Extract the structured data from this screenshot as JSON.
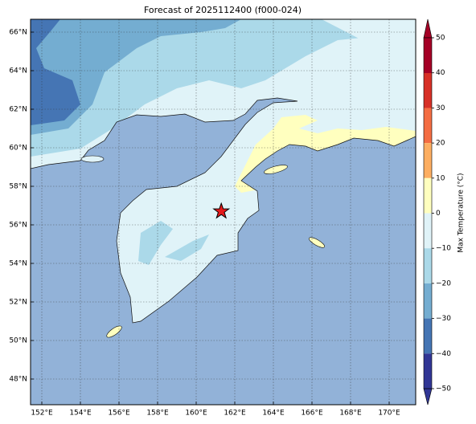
{
  "title": "Forecast of 2025112400 (f000-024)",
  "latitude_labels": [
    {
      "value": 66,
      "label": "66°N"
    },
    {
      "value": 64,
      "label": "64°N"
    },
    {
      "value": 62,
      "label": "62°N"
    },
    {
      "value": 60,
      "label": "60°N"
    },
    {
      "value": 58,
      "label": "58°N"
    },
    {
      "value": 56,
      "label": "56°N"
    },
    {
      "value": 54,
      "label": "54°N"
    },
    {
      "value": 52,
      "label": "52°N"
    },
    {
      "value": 50,
      "label": "50°N"
    },
    {
      "value": 48,
      "label": "48°N"
    }
  ],
  "longitude_labels": [
    {
      "value": 152,
      "label": "152°E"
    },
    {
      "value": 154,
      "label": "154°E"
    },
    {
      "value": 156,
      "label": "156°E"
    },
    {
      "value": 158,
      "label": "158°E"
    },
    {
      "value": 160,
      "label": "160°E"
    },
    {
      "value": 162,
      "label": "162°E"
    },
    {
      "value": 164,
      "label": "164°E"
    },
    {
      "value": 166,
      "label": "166°E"
    },
    {
      "value": 168,
      "label": "168°E"
    },
    {
      "value": 170,
      "label": "170°E"
    }
  ],
  "colorbar": {
    "label": "Max Temperature (°C)",
    "ticks": [
      {
        "value": 50,
        "label": "50"
      },
      {
        "value": 40,
        "label": "40"
      },
      {
        "value": 30,
        "label": "30"
      },
      {
        "value": 20,
        "label": "20"
      },
      {
        "value": 10,
        "label": "10"
      },
      {
        "value": 0,
        "label": "0"
      },
      {
        "value": -10,
        "label": "−10"
      },
      {
        "value": -20,
        "label": "−20"
      },
      {
        "value": -30,
        "label": "−30"
      },
      {
        "value": -40,
        "label": "−40"
      },
      {
        "value": -50,
        "label": "−50"
      }
    ]
  },
  "marker": {
    "lon": 161.3,
    "lat": 56.7
  }
}
